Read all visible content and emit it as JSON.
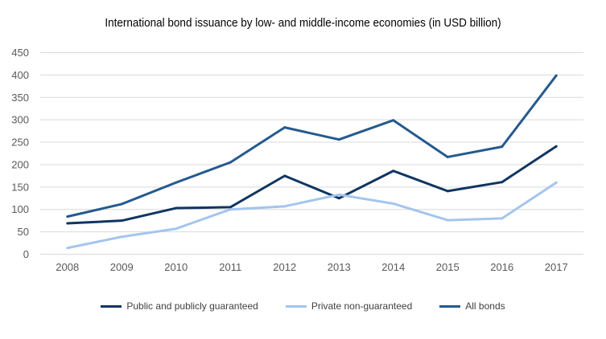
{
  "chart_data": {
    "type": "line",
    "title": "International bond issuance by low- and middle-income economies (in USD billion)",
    "xlabel": "",
    "ylabel": "",
    "categories": [
      "2008",
      "2009",
      "2010",
      "2011",
      "2012",
      "2013",
      "2014",
      "2015",
      "2016",
      "2017"
    ],
    "ylim": [
      0,
      450
    ],
    "yticks": [
      0,
      50,
      100,
      150,
      200,
      250,
      300,
      350,
      400,
      450
    ],
    "grid": true,
    "legend": "bottom",
    "series": [
      {
        "name": "Public and publicly guaranteed",
        "color": "#0f3562",
        "values": [
          69,
          75,
          103,
          105,
          175,
          125,
          186,
          141,
          161,
          241
        ]
      },
      {
        "name": "Private non-guaranteed",
        "color": "#a4c5ee",
        "values": [
          14,
          39,
          57,
          100,
          107,
          133,
          113,
          76,
          80,
          160
        ]
      },
      {
        "name": "All bonds",
        "color": "#255a8e",
        "values": [
          84,
          112,
          160,
          205,
          283,
          256,
          299,
          217,
          240,
          399
        ]
      }
    ]
  }
}
